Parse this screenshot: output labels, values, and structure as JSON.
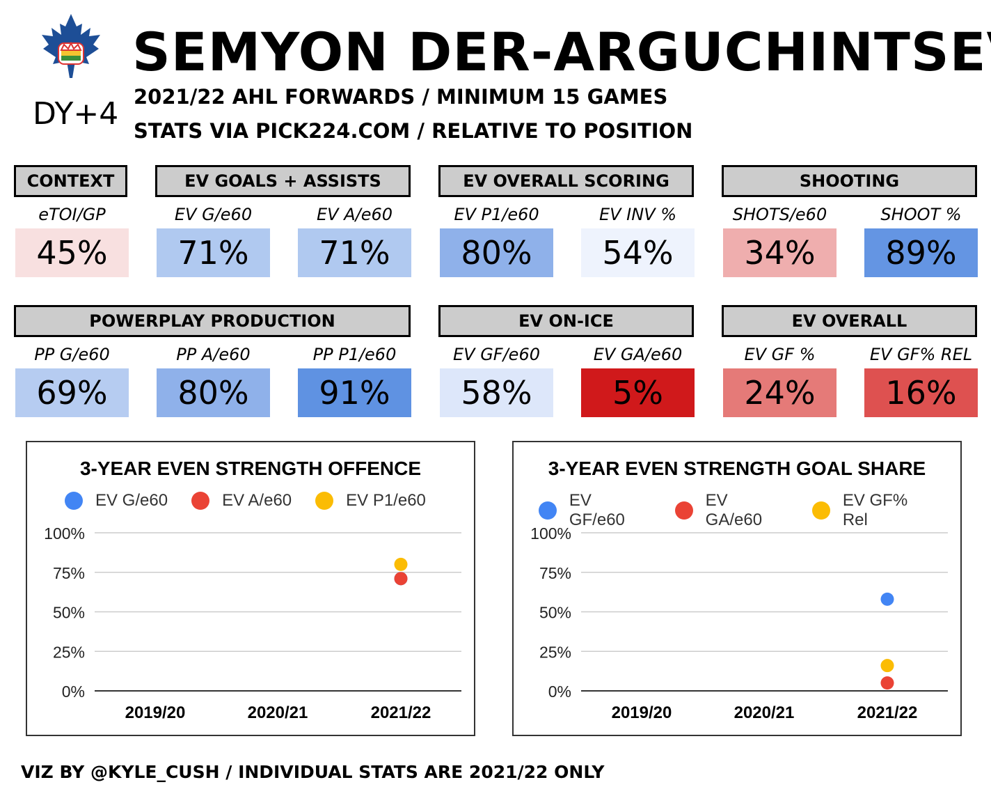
{
  "header": {
    "title": "SEMYON DER-ARGUCHINTSEV",
    "subtitle1": "2021/22 AHL FORWARDS / MINIMUM 15 GAMES",
    "subtitle2": "STATS VIA PICK224.COM / RELATIVE TO POSITION",
    "draft_year": "DY+4",
    "logo": "Toronto Marlies"
  },
  "groups": [
    {
      "title": "CONTEXT",
      "stats": [
        {
          "label": "eTOI/GP",
          "value": "45%",
          "color": "#f8e0e0"
        }
      ]
    },
    {
      "title": "EV GOALS + ASSISTS",
      "stats": [
        {
          "label": "EV G/e60",
          "value": "71%",
          "color": "#b0c9f0"
        },
        {
          "label": "EV A/e60",
          "value": "71%",
          "color": "#b0c9f0"
        }
      ]
    },
    {
      "title": "EV OVERALL SCORING",
      "stats": [
        {
          "label": "EV P1/e60",
          "value": "80%",
          "color": "#8fb1ea"
        },
        {
          "label": "EV INV %",
          "value": "54%",
          "color": "#eef3fd"
        }
      ]
    },
    {
      "title": "SHOOTING",
      "stats": [
        {
          "label": "SHOTS/e60",
          "value": "34%",
          "color": "#efaeae"
        },
        {
          "label": "SHOOT %",
          "value": "89%",
          "color": "#6495e3"
        }
      ]
    },
    {
      "title": "POWERPLAY PRODUCTION",
      "stats": [
        {
          "label": "PP G/e60",
          "value": "69%",
          "color": "#b6ccf1"
        },
        {
          "label": "PP A/e60",
          "value": "80%",
          "color": "#8fb1ea"
        },
        {
          "label": "PP P1/e60",
          "value": "91%",
          "color": "#5f92e2"
        }
      ]
    },
    {
      "title": "EV ON-ICE",
      "stats": [
        {
          "label": "EV GF/e60",
          "value": "58%",
          "color": "#dde7fa"
        },
        {
          "label": "EV GA/e60",
          "value": "5%",
          "color": "#d0191b"
        }
      ]
    },
    {
      "title": "EV OVERALL",
      "stats": [
        {
          "label": "EV GF %",
          "value": "24%",
          "color": "#e57a78"
        },
        {
          "label": "EV GF% REL",
          "value": "16%",
          "color": "#de5150"
        }
      ]
    }
  ],
  "chart_data": [
    {
      "type": "scatter",
      "title": "3-YEAR EVEN STRENGTH OFFENCE",
      "categories": [
        "2019/20",
        "2020/21",
        "2021/22"
      ],
      "yticks": [
        "0%",
        "25%",
        "50%",
        "75%",
        "100%"
      ],
      "ylim": [
        0,
        100
      ],
      "series": [
        {
          "name": "EV G/e60",
          "color": "#4285f4",
          "values": [
            null,
            null,
            71
          ]
        },
        {
          "name": "EV A/e60",
          "color": "#ea4335",
          "values": [
            null,
            null,
            71
          ]
        },
        {
          "name": "EV P1/e60",
          "color": "#fbbc04",
          "values": [
            null,
            null,
            80
          ]
        }
      ]
    },
    {
      "type": "scatter",
      "title": "3-YEAR EVEN STRENGTH GOAL SHARE",
      "categories": [
        "2019/20",
        "2020/21",
        "2021/22"
      ],
      "yticks": [
        "0%",
        "25%",
        "50%",
        "75%",
        "100%"
      ],
      "ylim": [
        0,
        100
      ],
      "series": [
        {
          "name": "EV GF/e60",
          "color": "#4285f4",
          "values": [
            null,
            null,
            58
          ]
        },
        {
          "name": "EV GA/e60",
          "color": "#ea4335",
          "values": [
            null,
            null,
            5
          ]
        },
        {
          "name": "EV GF% Rel",
          "color": "#fbbc04",
          "values": [
            null,
            null,
            16
          ]
        }
      ]
    }
  ],
  "footer": "VIZ BY @KYLE_CUSH / INDIVIDUAL STATS ARE 2021/22 ONLY"
}
